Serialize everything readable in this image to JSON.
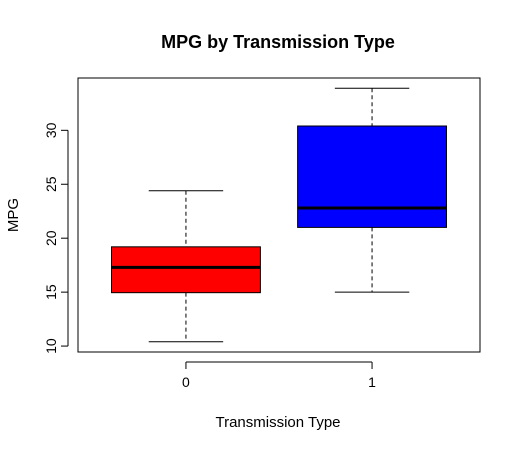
{
  "chart_data": {
    "type": "box",
    "title": "MPG by Transmission Type",
    "xlabel": "Transmission Type",
    "ylabel": "MPG",
    "categories": [
      "0",
      "1"
    ],
    "boxes": [
      {
        "category": "0",
        "min": 10.4,
        "q1": 14.95,
        "median": 17.3,
        "q3": 19.2,
        "max": 24.4,
        "color": "#ff0000"
      },
      {
        "category": "1",
        "min": 15.0,
        "q1": 21.0,
        "median": 22.8,
        "q3": 30.4,
        "max": 33.9,
        "color": "#0000ff"
      }
    ],
    "yticks": [
      10,
      15,
      20,
      25,
      30
    ],
    "ylim": [
      9.45,
      34.85
    ],
    "grid": false,
    "legend": "none"
  }
}
